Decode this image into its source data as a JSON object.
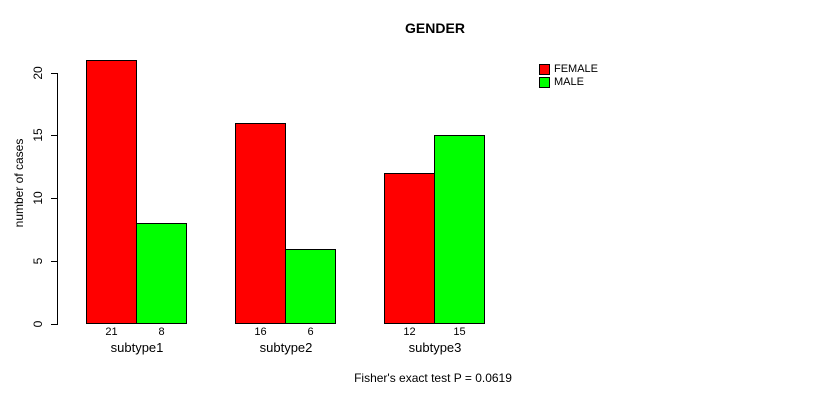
{
  "title": "GENDER",
  "y_axis": {
    "label": "number of cases",
    "tick_labels": [
      "0",
      "5",
      "10",
      "15",
      "20"
    ]
  },
  "caption": "Fisher's exact test P = 0.0619",
  "legend": {
    "items": [
      {
        "label": "FEMALE",
        "color": "#ff0000"
      },
      {
        "label": "MALE",
        "color": "#00ff00"
      }
    ]
  },
  "chart_data": {
    "type": "bar",
    "title": "GENDER",
    "xlabel": "",
    "ylabel": "number of cases",
    "categories": [
      "subtype1",
      "subtype2",
      "subtype3"
    ],
    "series": [
      {
        "name": "FEMALE",
        "color": "#ff0000",
        "values": [
          21,
          16,
          12
        ]
      },
      {
        "name": "MALE",
        "color": "#00ff00",
        "values": [
          8,
          6,
          15
        ]
      }
    ],
    "bar_value_labels": [
      [
        21,
        8
      ],
      [
        16,
        6
      ],
      [
        12,
        15
      ]
    ],
    "yticks": [
      0,
      5,
      10,
      15,
      20
    ],
    "ylim": [
      0,
      21
    ],
    "grid": false,
    "legend_position": "top-right",
    "annotation": "Fisher's exact test P = 0.0619"
  }
}
